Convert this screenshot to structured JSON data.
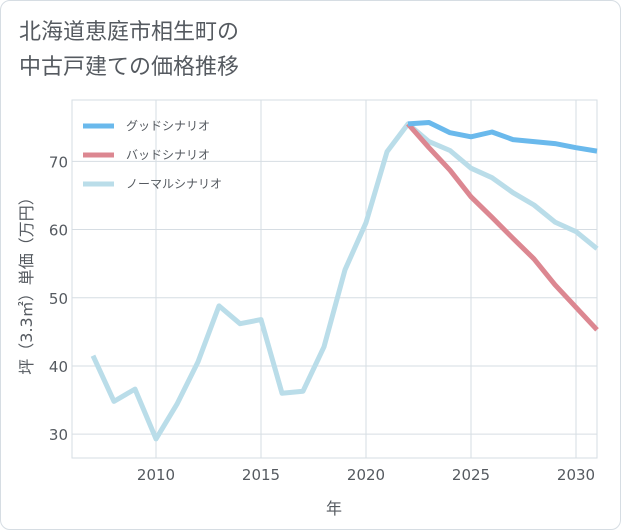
{
  "title": "北海道恵庭市相生町の\n中古戸建ての価格推移",
  "chart_data": {
    "type": "line",
    "title": "北海道恵庭市相生町の\n中古戸建ての価格推移",
    "xlabel": "年",
    "ylabel": "坪（3.3㎡）単価（万円）",
    "xlim": [
      2006,
      2031
    ],
    "ylim": [
      26.5,
      79
    ],
    "x_ticks": [
      2010,
      2015,
      2020,
      2025,
      2030
    ],
    "y_ticks": [
      30,
      40,
      50,
      60,
      70
    ],
    "grid": true,
    "legend_position": "top-left",
    "series": [
      {
        "name": "グッドシナリオ",
        "color": "#6ab9ec",
        "x": [
          2022,
          2023,
          2024,
          2025,
          2026,
          2027,
          2028,
          2029,
          2030,
          2031
        ],
        "y": [
          75.5,
          75.7,
          74.2,
          73.6,
          74.3,
          73.2,
          72.9,
          72.6,
          72.0,
          71.5
        ]
      },
      {
        "name": "バッドシナリオ",
        "color": "#dc8791",
        "x": [
          2022,
          2023,
          2024,
          2025,
          2026,
          2027,
          2028,
          2029,
          2030,
          2031
        ],
        "y": [
          75.5,
          72.0,
          68.7,
          64.8,
          61.8,
          58.7,
          55.7,
          51.9,
          48.6,
          45.3
        ]
      },
      {
        "name": "ノーマルシナリオ",
        "color": "#badde9",
        "x": [
          2007,
          2008,
          2009,
          2010,
          2011,
          2012,
          2013,
          2014,
          2015,
          2016,
          2017,
          2018,
          2019,
          2020,
          2021,
          2022,
          2023,
          2024,
          2025,
          2026,
          2027,
          2028,
          2029,
          2030,
          2031
        ],
        "y": [
          41.5,
          34.8,
          36.6,
          29.3,
          34.4,
          40.6,
          48.8,
          46.2,
          46.8,
          36.0,
          36.3,
          42.8,
          54.1,
          61.0,
          71.4,
          75.5,
          72.9,
          71.6,
          69.0,
          67.6,
          65.4,
          63.6,
          61.1,
          59.7,
          57.2
        ]
      }
    ]
  }
}
